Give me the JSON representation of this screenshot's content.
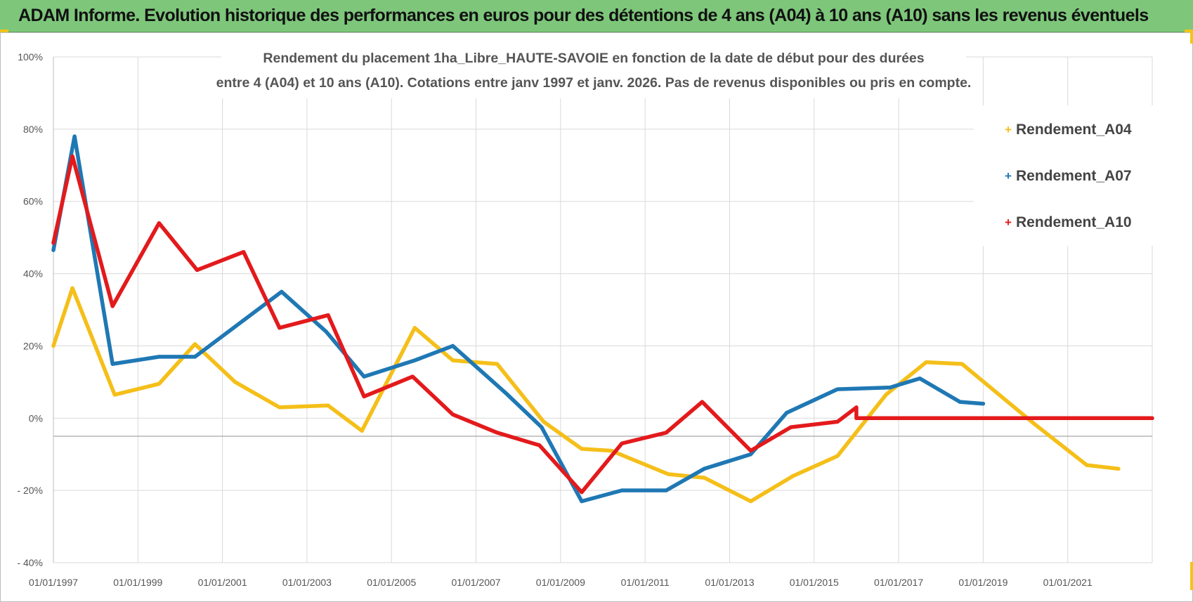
{
  "header": {
    "title": "ADAM Informe. Evolution historique des performances en euros pour des détentions de 4 ans (A04) à 10 ans (A10) sans les revenus éventuels"
  },
  "colors": {
    "banner": "#7dc67a",
    "corner_accent": "#f2c318",
    "grid": "#d9d9d9",
    "A04": "#f5bf1a",
    "A07": "#1f78b4",
    "A10": "#e31a1c"
  },
  "chart_data": {
    "type": "line",
    "subtitle_line1": "Rendement du placement 1ha_Libre_HAUTE-SAVOIE en fonction de la date de début pour des durées",
    "subtitle_line2": "entre 4 (A04) et 10 ans (A10).  Cotations entre janv 1997 et janv. 2026. Pas de revenus disponibles ou pris en compte.",
    "x_tick_labels": [
      "01/01/1997",
      "01/01/1999",
      "01/01/2001",
      "01/01/2003",
      "01/01/2005",
      "01/01/2007",
      "01/01/2009",
      "01/01/2011",
      "01/01/2013",
      "01/01/2015",
      "01/01/2017",
      "01/01/2019",
      "01/01/2021"
    ],
    "x_tick_years": [
      1997,
      1999,
      2001,
      2003,
      2005,
      2007,
      2009,
      2011,
      2013,
      2015,
      2017,
      2019,
      2021
    ],
    "x_range": [
      1997.0,
      2023.0
    ],
    "y_ticks": [
      -40,
      -20,
      0,
      20,
      40,
      60,
      80,
      100
    ],
    "y_tick_labels": [
      "- 40%",
      "- 20%",
      "0%",
      "20%",
      "40%",
      "60%",
      "80%",
      "100%"
    ],
    "y_range": [
      -40,
      100
    ],
    "x_axis_at": -5,
    "legend": [
      "Rendement_A04",
      "Rendement_A07",
      "Rendement_A10"
    ],
    "legend_position": "top-right",
    "series": [
      {
        "name": "Rendement_A04",
        "key": "A04",
        "points": [
          [
            1997.0,
            20
          ],
          [
            1997.45,
            36
          ],
          [
            1998.45,
            6.5
          ],
          [
            1999.5,
            9.5
          ],
          [
            2000.35,
            20.5
          ],
          [
            2001.3,
            10
          ],
          [
            2002.35,
            3
          ],
          [
            2003.5,
            3.5
          ],
          [
            2004.3,
            -3.5
          ],
          [
            2005.55,
            25
          ],
          [
            2006.45,
            16
          ],
          [
            2007.5,
            15
          ],
          [
            2008.6,
            -1
          ],
          [
            2009.5,
            -8.5
          ],
          [
            2010.2,
            -9
          ],
          [
            2011.55,
            -15.5
          ],
          [
            2012.4,
            -16.5
          ],
          [
            2013.5,
            -23
          ],
          [
            2014.5,
            -16
          ],
          [
            2015.55,
            -10.5
          ],
          [
            2016.7,
            6.5
          ],
          [
            2017.65,
            15.5
          ],
          [
            2018.5,
            15
          ],
          [
            2020.2,
            -1.5
          ],
          [
            2021.45,
            -13
          ],
          [
            2022.2,
            -14
          ]
        ]
      },
      {
        "name": "Rendement_A07",
        "key": "A07",
        "points": [
          [
            1997.0,
            46.5
          ],
          [
            1997.5,
            78
          ],
          [
            1998.4,
            15
          ],
          [
            1999.5,
            17
          ],
          [
            2000.35,
            17
          ],
          [
            2002.4,
            35
          ],
          [
            2003.45,
            24
          ],
          [
            2004.35,
            11.5
          ],
          [
            2005.55,
            16
          ],
          [
            2006.45,
            20
          ],
          [
            2007.7,
            7
          ],
          [
            2008.55,
            -2.5
          ],
          [
            2009.5,
            -23
          ],
          [
            2010.45,
            -20
          ],
          [
            2011.5,
            -20
          ],
          [
            2012.4,
            -14
          ],
          [
            2013.5,
            -10
          ],
          [
            2014.35,
            1.5
          ],
          [
            2015.55,
            8
          ],
          [
            2016.8,
            8.5
          ],
          [
            2017.5,
            11
          ],
          [
            2018.45,
            4.5
          ],
          [
            2019.0,
            4
          ]
        ]
      },
      {
        "name": "Rendement_A10",
        "key": "A10",
        "points": [
          [
            1997.0,
            48.5
          ],
          [
            1997.45,
            72.5
          ],
          [
            1998.4,
            31
          ],
          [
            1999.5,
            54
          ],
          [
            2000.4,
            41
          ],
          [
            2001.5,
            46
          ],
          [
            2002.35,
            25
          ],
          [
            2003.5,
            28.5
          ],
          [
            2004.35,
            6
          ],
          [
            2005.5,
            11.5
          ],
          [
            2006.45,
            1
          ],
          [
            2007.5,
            -4
          ],
          [
            2008.5,
            -7.5
          ],
          [
            2009.5,
            -20.5
          ],
          [
            2010.45,
            -7
          ],
          [
            2011.5,
            -4
          ],
          [
            2012.35,
            4.5
          ],
          [
            2013.5,
            -9
          ],
          [
            2014.45,
            -2.5
          ],
          [
            2015.55,
            -1
          ],
          [
            2016.0,
            3
          ],
          [
            2016.0,
            0
          ],
          [
            2023.0,
            0
          ]
        ]
      }
    ]
  }
}
